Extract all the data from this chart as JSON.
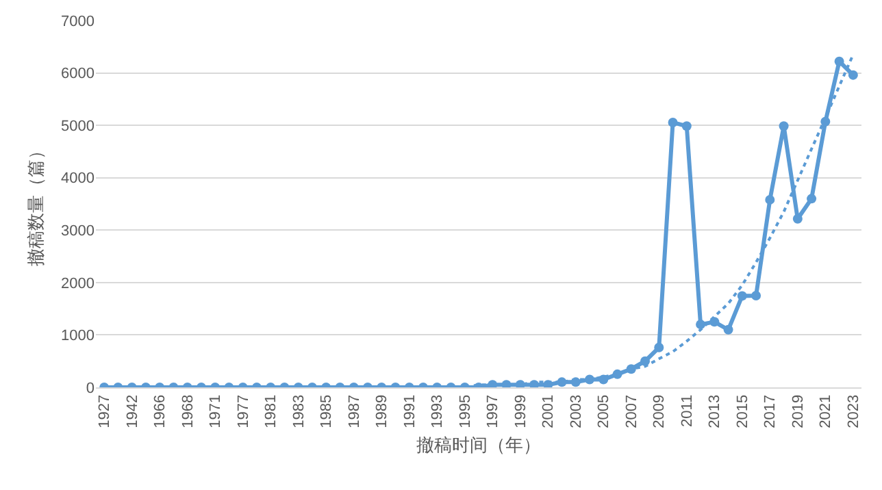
{
  "chart_data": {
    "type": "line",
    "xlabel": "撤稿时间（年）",
    "ylabel": "撤稿数量（篇）",
    "categories": [
      "1927",
      null,
      "1942",
      null,
      "1966",
      null,
      "1968",
      null,
      "1971",
      null,
      "1977",
      null,
      "1981",
      null,
      "1983",
      null,
      "1985",
      null,
      "1987",
      null,
      "1989",
      null,
      "1991",
      null,
      "1993",
      null,
      "1995",
      null,
      "1997",
      null,
      "1999",
      null,
      "2001",
      null,
      "2003",
      null,
      "2005",
      null,
      "2007",
      null,
      "2009",
      null,
      "2011",
      null,
      "2013",
      null,
      "2015",
      null,
      "2017",
      null,
      "2019",
      null,
      "2021",
      null,
      "2023"
    ],
    "series": [
      {
        "color": "#5b9bd5",
        "marker": "circle",
        "line_style": "solid",
        "values": [
          0,
          0,
          0,
          0,
          0,
          0,
          0,
          0,
          0,
          0,
          0,
          0,
          0,
          0,
          0,
          0,
          0,
          0,
          0,
          0,
          0,
          0,
          0,
          0,
          0,
          0,
          0,
          0,
          50,
          50,
          50,
          50,
          50,
          100,
          100,
          150,
          150,
          250,
          350,
          500,
          760,
          5055,
          4985,
          1200,
          1250,
          1100,
          1745,
          1750,
          3580,
          4985,
          3215,
          3600,
          5070,
          6220,
          5960
        ]
      },
      {
        "type": "line",
        "color": "#5b9bd5",
        "marker": "none",
        "line_style": "dotted",
        "values": [
          0,
          0,
          0,
          0,
          0,
          0,
          0,
          0,
          0,
          0,
          0,
          0,
          0,
          0,
          0,
          0,
          0,
          0,
          0,
          0,
          0,
          0,
          0,
          0,
          0,
          0,
          0,
          50,
          50,
          50,
          50,
          100,
          100,
          100,
          150,
          150,
          200,
          250,
          350,
          400,
          545,
          680,
          880,
          1100,
          1350,
          1600,
          1950,
          2385,
          2850,
          3350,
          3950,
          4550,
          5140,
          5750,
          6350
        ]
      }
    ],
    "ylim": [
      0,
      7000
    ],
    "yticks": [
      0,
      1000,
      2000,
      3000,
      4000,
      5000,
      6000,
      7000
    ],
    "grid": "y"
  }
}
